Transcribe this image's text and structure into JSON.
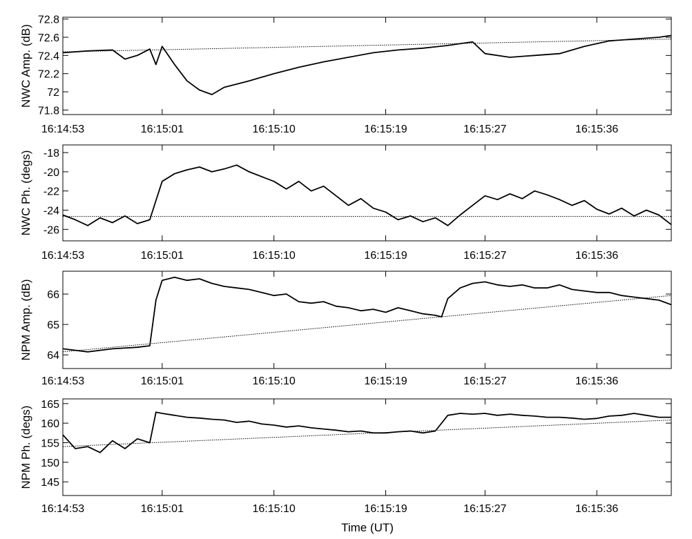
{
  "figure": {
    "xlabel": "Time (UT)"
  },
  "chart_data": [
    {
      "type": "line",
      "ylabel": "NWC Amp. (dB)",
      "x_ticks": [
        "16:14:53",
        "16:15:01",
        "16:15:10",
        "16:15:19",
        "16:15:27",
        "16:15:36"
      ],
      "y_ticks": [
        "71.8",
        "72",
        "72.2",
        "72.4",
        "72.6",
        "72.8"
      ],
      "xlim": [
        "16:14:53",
        "16:15:42"
      ],
      "ylim": [
        71.75,
        72.82
      ],
      "series": [
        {
          "style": "solid",
          "points": [
            [
              "16:14:53",
              72.43
            ],
            [
              "16:14:55",
              72.45
            ],
            [
              "16:14:57",
              72.46
            ],
            [
              "16:14:58",
              72.36
            ],
            [
              "16:14:59",
              72.4
            ],
            [
              "16:15:00",
              72.47
            ],
            [
              "16:15:00.5",
              72.3
            ],
            [
              "16:15:01",
              72.5
            ],
            [
              "16:15:02",
              72.3
            ],
            [
              "16:15:03",
              72.12
            ],
            [
              "16:15:04",
              72.02
            ],
            [
              "16:15:05",
              71.97
            ],
            [
              "16:15:06",
              72.05
            ],
            [
              "16:15:08",
              72.12
            ],
            [
              "16:15:10",
              72.2
            ],
            [
              "16:15:12",
              72.27
            ],
            [
              "16:15:14",
              72.33
            ],
            [
              "16:15:16",
              72.38
            ],
            [
              "16:15:18",
              72.43
            ],
            [
              "16:15:20",
              72.46
            ],
            [
              "16:15:22",
              72.48
            ],
            [
              "16:15:24",
              72.51
            ],
            [
              "16:15:26",
              72.55
            ],
            [
              "16:15:27",
              72.42
            ],
            [
              "16:15:29",
              72.38
            ],
            [
              "16:15:31",
              72.4
            ],
            [
              "16:15:33",
              72.42
            ],
            [
              "16:15:35",
              72.5
            ],
            [
              "16:15:37",
              72.56
            ],
            [
              "16:15:39",
              72.58
            ],
            [
              "16:15:41",
              72.6
            ],
            [
              "16:15:42",
              72.62
            ]
          ]
        },
        {
          "style": "dotted",
          "points": [
            [
              "16:14:53",
              72.44
            ],
            [
              "16:15:42",
              72.58
            ]
          ]
        }
      ]
    },
    {
      "type": "line",
      "ylabel": "NWC Ph. (degs)",
      "x_ticks": [
        "16:14:53",
        "16:15:01",
        "16:15:10",
        "16:15:19",
        "16:15:27",
        "16:15:36"
      ],
      "y_ticks": [
        "-26",
        "-24",
        "-22",
        "-20",
        "-18"
      ],
      "xlim": [
        "16:14:53",
        "16:15:42"
      ],
      "ylim": [
        -27.2,
        -17.2
      ],
      "series": [
        {
          "style": "solid",
          "points": [
            [
              "16:14:53",
              -24.5
            ],
            [
              "16:14:54",
              -25.0
            ],
            [
              "16:14:55",
              -25.6
            ],
            [
              "16:14:56",
              -24.8
            ],
            [
              "16:14:57",
              -25.3
            ],
            [
              "16:14:58",
              -24.6
            ],
            [
              "16:14:59",
              -25.4
            ],
            [
              "16:15:00",
              -25.0
            ],
            [
              "16:15:00.5",
              -23.0
            ],
            [
              "16:15:01",
              -21.0
            ],
            [
              "16:15:02",
              -20.2
            ],
            [
              "16:15:03",
              -19.8
            ],
            [
              "16:15:04",
              -19.5
            ],
            [
              "16:15:05",
              -20.0
            ],
            [
              "16:15:06",
              -19.7
            ],
            [
              "16:15:07",
              -19.3
            ],
            [
              "16:15:08",
              -20.0
            ],
            [
              "16:15:09",
              -20.5
            ],
            [
              "16:15:10",
              -21.0
            ],
            [
              "16:15:11",
              -21.8
            ],
            [
              "16:15:12",
              -21.0
            ],
            [
              "16:15:13",
              -22.0
            ],
            [
              "16:15:14",
              -21.5
            ],
            [
              "16:15:15",
              -22.5
            ],
            [
              "16:15:16",
              -23.5
            ],
            [
              "16:15:17",
              -22.8
            ],
            [
              "16:15:18",
              -23.8
            ],
            [
              "16:15:19",
              -24.2
            ],
            [
              "16:15:20",
              -25.0
            ],
            [
              "16:15:21",
              -24.6
            ],
            [
              "16:15:22",
              -25.2
            ],
            [
              "16:15:23",
              -24.8
            ],
            [
              "16:15:24",
              -25.6
            ],
            [
              "16:15:25",
              -24.5
            ],
            [
              "16:15:26",
              -23.5
            ],
            [
              "16:15:27",
              -22.5
            ],
            [
              "16:15:28",
              -22.9
            ],
            [
              "16:15:29",
              -22.3
            ],
            [
              "16:15:30",
              -22.8
            ],
            [
              "16:15:31",
              -22.0
            ],
            [
              "16:15:32",
              -22.4
            ],
            [
              "16:15:33",
              -22.9
            ],
            [
              "16:15:34",
              -23.5
            ],
            [
              "16:15:35",
              -23.0
            ],
            [
              "16:15:36",
              -23.9
            ],
            [
              "16:15:37",
              -24.4
            ],
            [
              "16:15:38",
              -23.8
            ],
            [
              "16:15:39",
              -24.6
            ],
            [
              "16:15:40",
              -24.0
            ],
            [
              "16:15:41",
              -24.5
            ],
            [
              "16:15:42",
              -25.5
            ]
          ]
        },
        {
          "style": "dotted",
          "points": [
            [
              "16:14:53",
              -24.65
            ],
            [
              "16:15:42",
              -24.65
            ]
          ]
        }
      ]
    },
    {
      "type": "line",
      "ylabel": "NPM Amp. (dB)",
      "x_ticks": [
        "16:14:53",
        "16:15:01",
        "16:15:10",
        "16:15:19",
        "16:15:27",
        "16:15:36"
      ],
      "y_ticks": [
        "64",
        "65",
        "66"
      ],
      "xlim": [
        "16:14:53",
        "16:15:42"
      ],
      "ylim": [
        63.55,
        66.75
      ],
      "series": [
        {
          "style": "solid",
          "points": [
            [
              "16:14:53",
              64.2
            ],
            [
              "16:14:55",
              64.1
            ],
            [
              "16:14:57",
              64.2
            ],
            [
              "16:14:59",
              64.25
            ],
            [
              "16:15:00",
              64.3
            ],
            [
              "16:15:00.5",
              65.8
            ],
            [
              "16:15:01",
              66.45
            ],
            [
              "16:15:02",
              66.55
            ],
            [
              "16:15:03",
              66.45
            ],
            [
              "16:15:04",
              66.5
            ],
            [
              "16:15:05",
              66.35
            ],
            [
              "16:15:06",
              66.25
            ],
            [
              "16:15:07",
              66.2
            ],
            [
              "16:15:08",
              66.15
            ],
            [
              "16:15:09",
              66.05
            ],
            [
              "16:15:10",
              65.95
            ],
            [
              "16:15:11",
              66.0
            ],
            [
              "16:15:12",
              65.75
            ],
            [
              "16:15:13",
              65.7
            ],
            [
              "16:15:14",
              65.75
            ],
            [
              "16:15:15",
              65.6
            ],
            [
              "16:15:16",
              65.55
            ],
            [
              "16:15:17",
              65.45
            ],
            [
              "16:15:18",
              65.5
            ],
            [
              "16:15:19",
              65.4
            ],
            [
              "16:15:20",
              65.55
            ],
            [
              "16:15:21",
              65.45
            ],
            [
              "16:15:22",
              65.35
            ],
            [
              "16:15:23",
              65.3
            ],
            [
              "16:15:23.5",
              65.25
            ],
            [
              "16:15:24",
              65.85
            ],
            [
              "16:15:25",
              66.2
            ],
            [
              "16:15:26",
              66.35
            ],
            [
              "16:15:27",
              66.4
            ],
            [
              "16:15:28",
              66.3
            ],
            [
              "16:15:29",
              66.25
            ],
            [
              "16:15:30",
              66.3
            ],
            [
              "16:15:31",
              66.2
            ],
            [
              "16:15:32",
              66.2
            ],
            [
              "16:15:33",
              66.3
            ],
            [
              "16:15:34",
              66.15
            ],
            [
              "16:15:35",
              66.1
            ],
            [
              "16:15:36",
              66.05
            ],
            [
              "16:15:37",
              66.05
            ],
            [
              "16:15:38",
              65.95
            ],
            [
              "16:15:39",
              65.9
            ],
            [
              "16:15:40",
              65.85
            ],
            [
              "16:15:41",
              65.8
            ],
            [
              "16:15:42",
              65.65
            ]
          ]
        },
        {
          "style": "dotted",
          "points": [
            [
              "16:14:53",
              64.1
            ],
            [
              "16:15:42",
              65.95
            ]
          ]
        }
      ]
    },
    {
      "type": "line",
      "ylabel": "NPM Ph. (degs)",
      "x_ticks": [
        "16:14:53",
        "16:15:01",
        "16:15:10",
        "16:15:19",
        "16:15:27",
        "16:15:36"
      ],
      "y_ticks": [
        "145",
        "150",
        "155",
        "160",
        "165"
      ],
      "xlim": [
        "16:14:53",
        "16:15:42"
      ],
      "ylim": [
        141.5,
        166.2
      ],
      "series": [
        {
          "style": "solid",
          "points": [
            [
              "16:14:53",
              157.0
            ],
            [
              "16:14:54",
              153.5
            ],
            [
              "16:14:55",
              154.0
            ],
            [
              "16:14:56",
              152.5
            ],
            [
              "16:14:57",
              155.5
            ],
            [
              "16:14:58",
              153.5
            ],
            [
              "16:14:59",
              156.0
            ],
            [
              "16:15:00",
              155.0
            ],
            [
              "16:15:00.5",
              162.8
            ],
            [
              "16:15:01",
              162.5
            ],
            [
              "16:15:02",
              162.0
            ],
            [
              "16:15:03",
              161.5
            ],
            [
              "16:15:04",
              161.3
            ],
            [
              "16:15:05",
              161.0
            ],
            [
              "16:15:06",
              160.8
            ],
            [
              "16:15:07",
              160.2
            ],
            [
              "16:15:08",
              160.5
            ],
            [
              "16:15:09",
              159.8
            ],
            [
              "16:15:10",
              159.5
            ],
            [
              "16:15:11",
              159.0
            ],
            [
              "16:15:12",
              159.3
            ],
            [
              "16:15:13",
              158.8
            ],
            [
              "16:15:14",
              158.5
            ],
            [
              "16:15:15",
              158.2
            ],
            [
              "16:15:16",
              157.8
            ],
            [
              "16:15:17",
              158.0
            ],
            [
              "16:15:18",
              157.5
            ],
            [
              "16:15:19",
              157.5
            ],
            [
              "16:15:20",
              157.8
            ],
            [
              "16:15:21",
              158.0
            ],
            [
              "16:15:22",
              157.5
            ],
            [
              "16:15:23",
              158.0
            ],
            [
              "16:15:24",
              162.0
            ],
            [
              "16:15:25",
              162.5
            ],
            [
              "16:15:26",
              162.3
            ],
            [
              "16:15:27",
              162.5
            ],
            [
              "16:15:28",
              162.0
            ],
            [
              "16:15:29",
              162.3
            ],
            [
              "16:15:30",
              162.0
            ],
            [
              "16:15:31",
              161.8
            ],
            [
              "16:15:32",
              161.5
            ],
            [
              "16:15:33",
              161.5
            ],
            [
              "16:15:34",
              161.3
            ],
            [
              "16:15:35",
              161.0
            ],
            [
              "16:15:36",
              161.2
            ],
            [
              "16:15:37",
              161.8
            ],
            [
              "16:15:38",
              162.0
            ],
            [
              "16:15:39",
              162.5
            ],
            [
              "16:15:40",
              162.0
            ],
            [
              "16:15:41",
              161.5
            ],
            [
              "16:15:42",
              161.5
            ]
          ]
        },
        {
          "style": "dotted",
          "points": [
            [
              "16:14:53",
              154.0
            ],
            [
              "16:15:42",
              160.8
            ]
          ]
        }
      ]
    }
  ]
}
